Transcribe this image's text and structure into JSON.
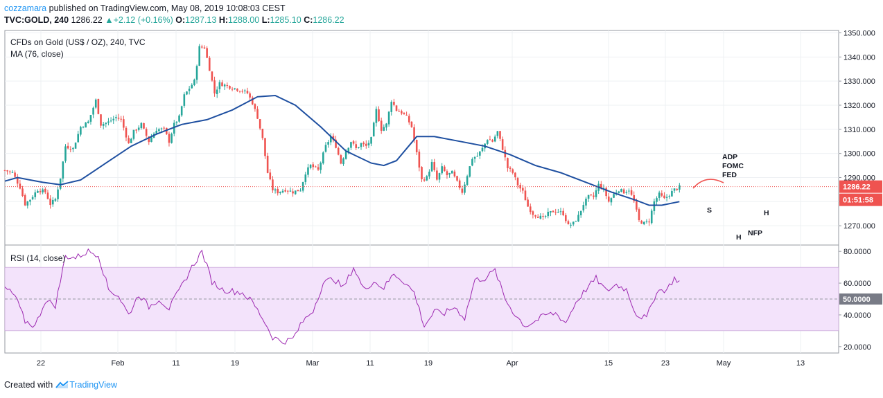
{
  "header": {
    "author": "cozzamara",
    "published": "published on TradingView.com, May 08, 2019 10:08:03 CEST",
    "symbol": "TVC:GOLD, 240",
    "last": "1286.22",
    "change": "+2.12 (+0.16%)",
    "o_label": "O:",
    "o_value": "1287.13",
    "h_label": "H:",
    "h_value": "1288.00",
    "l_label": "L:",
    "l_value": "1285.10",
    "c_label": "C:",
    "c_value": "1286.22"
  },
  "footer": {
    "created_with": "Created with",
    "brand": "TradingView"
  },
  "colors": {
    "up": "#26a69a",
    "down": "#ef5350",
    "ma": "#1e4fa0",
    "rsi": "#9c27b0",
    "rsi_band": "#f3e3fb",
    "last_label": "#ef5350",
    "rsi_label": "#787b86"
  },
  "chart_data": [
    {
      "type": "candlestick",
      "legend": [
        "CFDs on Gold (US$ / OZ), 240, TVC",
        "MA (76, close)"
      ],
      "y_ticks": [
        1270.0,
        1280.0,
        1290.0,
        1300.0,
        1310.0,
        1320.0,
        1330.0,
        1340.0,
        1350.0
      ],
      "y_tick_labels": [
        "1270.000",
        "1280.000",
        "1290.000",
        "1300.000",
        "1310.000",
        "1320.000",
        "1330.000",
        "1340.000",
        "1350.000"
      ],
      "ylim": [
        1262,
        1351
      ],
      "last_price_label": "1286.22",
      "countdown_label": "01:51:58",
      "annotations": [
        "ADP",
        "FOMC",
        "FED",
        "S",
        "H",
        "H",
        "NFP"
      ],
      "x_tick_labels": [
        "22",
        "Feb",
        "11",
        "19",
        "Mar",
        "11",
        "19",
        "Apr",
        "15",
        "23",
        "May",
        "13"
      ],
      "close_path": [
        {
          "x": 0,
          "y": 1293
        },
        {
          "x": 3,
          "y": 1292
        },
        {
          "x": 6,
          "y": 1286
        },
        {
          "x": 8,
          "y": 1279
        },
        {
          "x": 10,
          "y": 1281
        },
        {
          "x": 13,
          "y": 1285
        },
        {
          "x": 16,
          "y": 1284
        },
        {
          "x": 18,
          "y": 1279
        },
        {
          "x": 20,
          "y": 1281
        },
        {
          "x": 22,
          "y": 1290
        },
        {
          "x": 24,
          "y": 1303
        },
        {
          "x": 27,
          "y": 1302
        },
        {
          "x": 30,
          "y": 1311
        },
        {
          "x": 33,
          "y": 1313
        },
        {
          "x": 36,
          "y": 1322
        },
        {
          "x": 38,
          "y": 1312
        },
        {
          "x": 41,
          "y": 1313
        },
        {
          "x": 44,
          "y": 1315
        },
        {
          "x": 46,
          "y": 1314
        },
        {
          "x": 49,
          "y": 1304
        },
        {
          "x": 51,
          "y": 1309
        },
        {
          "x": 54,
          "y": 1312
        },
        {
          "x": 57,
          "y": 1305
        },
        {
          "x": 60,
          "y": 1310
        },
        {
          "x": 63,
          "y": 1310
        },
        {
          "x": 65,
          "y": 1305
        },
        {
          "x": 67,
          "y": 1312
        },
        {
          "x": 69,
          "y": 1315
        },
        {
          "x": 71,
          "y": 1324
        },
        {
          "x": 73,
          "y": 1327
        },
        {
          "x": 75,
          "y": 1330
        },
        {
          "x": 77,
          "y": 1344
        },
        {
          "x": 79,
          "y": 1344
        },
        {
          "x": 81,
          "y": 1335
        },
        {
          "x": 83,
          "y": 1325
        },
        {
          "x": 85,
          "y": 1329
        },
        {
          "x": 88,
          "y": 1328
        },
        {
          "x": 91,
          "y": 1327
        },
        {
          "x": 94,
          "y": 1326
        },
        {
          "x": 96,
          "y": 1325
        },
        {
          "x": 98,
          "y": 1321
        },
        {
          "x": 100,
          "y": 1315
        },
        {
          "x": 102,
          "y": 1306
        },
        {
          "x": 104,
          "y": 1292
        },
        {
          "x": 106,
          "y": 1285
        },
        {
          "x": 108,
          "y": 1284
        },
        {
          "x": 111,
          "y": 1285
        },
        {
          "x": 114,
          "y": 1284
        },
        {
          "x": 117,
          "y": 1285
        },
        {
          "x": 119,
          "y": 1292
        },
        {
          "x": 121,
          "y": 1295
        },
        {
          "x": 124,
          "y": 1293
        },
        {
          "x": 127,
          "y": 1303
        },
        {
          "x": 129,
          "y": 1307
        },
        {
          "x": 131,
          "y": 1303
        },
        {
          "x": 133,
          "y": 1296
        },
        {
          "x": 135,
          "y": 1301
        },
        {
          "x": 137,
          "y": 1305
        },
        {
          "x": 139,
          "y": 1302
        },
        {
          "x": 141,
          "y": 1304
        },
        {
          "x": 143,
          "y": 1303
        },
        {
          "x": 145,
          "y": 1306
        },
        {
          "x": 147,
          "y": 1318
        },
        {
          "x": 149,
          "y": 1310
        },
        {
          "x": 151,
          "y": 1312
        },
        {
          "x": 153,
          "y": 1322
        },
        {
          "x": 155,
          "y": 1318
        },
        {
          "x": 157,
          "y": 1317
        },
        {
          "x": 159,
          "y": 1315
        },
        {
          "x": 161,
          "y": 1311
        },
        {
          "x": 163,
          "y": 1300
        },
        {
          "x": 165,
          "y": 1289
        },
        {
          "x": 167,
          "y": 1290
        },
        {
          "x": 169,
          "y": 1296
        },
        {
          "x": 171,
          "y": 1289
        },
        {
          "x": 173,
          "y": 1294
        },
        {
          "x": 175,
          "y": 1291
        },
        {
          "x": 177,
          "y": 1292
        },
        {
          "x": 179,
          "y": 1288
        },
        {
          "x": 181,
          "y": 1284
        },
        {
          "x": 183,
          "y": 1291
        },
        {
          "x": 185,
          "y": 1298
        },
        {
          "x": 187,
          "y": 1299
        },
        {
          "x": 189,
          "y": 1302
        },
        {
          "x": 191,
          "y": 1306
        },
        {
          "x": 193,
          "y": 1305
        },
        {
          "x": 195,
          "y": 1309
        },
        {
          "x": 197,
          "y": 1302
        },
        {
          "x": 199,
          "y": 1294
        },
        {
          "x": 201,
          "y": 1292
        },
        {
          "x": 203,
          "y": 1287
        },
        {
          "x": 205,
          "y": 1284
        },
        {
          "x": 207,
          "y": 1278
        },
        {
          "x": 209,
          "y": 1275
        },
        {
          "x": 211,
          "y": 1274
        },
        {
          "x": 213,
          "y": 1273
        },
        {
          "x": 215,
          "y": 1275
        },
        {
          "x": 217,
          "y": 1276
        },
        {
          "x": 219,
          "y": 1276
        },
        {
          "x": 221,
          "y": 1275
        },
        {
          "x": 223,
          "y": 1270
        },
        {
          "x": 225,
          "y": 1271
        },
        {
          "x": 227,
          "y": 1274
        },
        {
          "x": 229,
          "y": 1279
        },
        {
          "x": 231,
          "y": 1282
        },
        {
          "x": 233,
          "y": 1282
        },
        {
          "x": 235,
          "y": 1287
        },
        {
          "x": 237,
          "y": 1285
        },
        {
          "x": 239,
          "y": 1280
        },
        {
          "x": 241,
          "y": 1283
        },
        {
          "x": 243,
          "y": 1285
        },
        {
          "x": 245,
          "y": 1284
        },
        {
          "x": 247,
          "y": 1285
        },
        {
          "x": 249,
          "y": 1280
        },
        {
          "x": 251,
          "y": 1272
        },
        {
          "x": 253,
          "y": 1271
        },
        {
          "x": 255,
          "y": 1272
        },
        {
          "x": 257,
          "y": 1280
        },
        {
          "x": 259,
          "y": 1283
        },
        {
          "x": 261,
          "y": 1281
        },
        {
          "x": 263,
          "y": 1283
        },
        {
          "x": 265,
          "y": 1285
        },
        {
          "x": 267,
          "y": 1286
        }
      ],
      "ma_path": [
        {
          "x": 0,
          "y": 1288.5
        },
        {
          "x": 5,
          "y": 1290
        },
        {
          "x": 10,
          "y": 1289
        },
        {
          "x": 15,
          "y": 1288
        },
        {
          "x": 22,
          "y": 1287
        },
        {
          "x": 30,
          "y": 1289
        },
        {
          "x": 40,
          "y": 1296
        },
        {
          "x": 50,
          "y": 1303
        },
        {
          "x": 60,
          "y": 1308
        },
        {
          "x": 70,
          "y": 1312
        },
        {
          "x": 80,
          "y": 1314
        },
        {
          "x": 90,
          "y": 1318
        },
        {
          "x": 100,
          "y": 1323.5
        },
        {
          "x": 107,
          "y": 1324
        },
        {
          "x": 115,
          "y": 1320
        },
        {
          "x": 125,
          "y": 1311
        },
        {
          "x": 135,
          "y": 1301
        },
        {
          "x": 145,
          "y": 1296
        },
        {
          "x": 150,
          "y": 1295
        },
        {
          "x": 155,
          "y": 1297
        },
        {
          "x": 163,
          "y": 1307
        },
        {
          "x": 170,
          "y": 1307
        },
        {
          "x": 180,
          "y": 1305
        },
        {
          "x": 190,
          "y": 1303
        },
        {
          "x": 200,
          "y": 1299.5
        },
        {
          "x": 210,
          "y": 1295
        },
        {
          "x": 220,
          "y": 1292
        },
        {
          "x": 230,
          "y": 1288
        },
        {
          "x": 240,
          "y": 1284
        },
        {
          "x": 250,
          "y": 1280.5
        },
        {
          "x": 255,
          "y": 1278.5
        },
        {
          "x": 260,
          "y": 1278.5
        },
        {
          "x": 267,
          "y": 1280
        }
      ]
    },
    {
      "type": "line",
      "legend": [
        "RSI (14, close)"
      ],
      "y_ticks": [
        20,
        40,
        60,
        80
      ],
      "y_tick_labels": [
        "20.0000",
        "40.0000",
        "60.0000",
        "80.0000"
      ],
      "ylim": [
        16,
        84
      ],
      "band": [
        30,
        70
      ],
      "mid_line": 50,
      "mid_label": "50.0000",
      "values": [
        {
          "x": 0,
          "y": 57
        },
        {
          "x": 4,
          "y": 52
        },
        {
          "x": 8,
          "y": 36
        },
        {
          "x": 12,
          "y": 33
        },
        {
          "x": 16,
          "y": 49
        },
        {
          "x": 20,
          "y": 46
        },
        {
          "x": 24,
          "y": 77
        },
        {
          "x": 28,
          "y": 76
        },
        {
          "x": 33,
          "y": 80
        },
        {
          "x": 37,
          "y": 78
        },
        {
          "x": 41,
          "y": 56
        },
        {
          "x": 45,
          "y": 52
        },
        {
          "x": 49,
          "y": 40
        },
        {
          "x": 53,
          "y": 53
        },
        {
          "x": 57,
          "y": 45
        },
        {
          "x": 61,
          "y": 50
        },
        {
          "x": 65,
          "y": 44
        },
        {
          "x": 70,
          "y": 58
        },
        {
          "x": 74,
          "y": 70
        },
        {
          "x": 78,
          "y": 80
        },
        {
          "x": 82,
          "y": 61
        },
        {
          "x": 86,
          "y": 56
        },
        {
          "x": 90,
          "y": 55
        },
        {
          "x": 94,
          "y": 54
        },
        {
          "x": 98,
          "y": 48
        },
        {
          "x": 102,
          "y": 38
        },
        {
          "x": 106,
          "y": 26
        },
        {
          "x": 110,
          "y": 23
        },
        {
          "x": 114,
          "y": 25
        },
        {
          "x": 118,
          "y": 36
        },
        {
          "x": 122,
          "y": 43
        },
        {
          "x": 126,
          "y": 60
        },
        {
          "x": 130,
          "y": 63
        },
        {
          "x": 134,
          "y": 57
        },
        {
          "x": 138,
          "y": 70
        },
        {
          "x": 142,
          "y": 56
        },
        {
          "x": 146,
          "y": 61
        },
        {
          "x": 150,
          "y": 57
        },
        {
          "x": 154,
          "y": 66
        },
        {
          "x": 158,
          "y": 61
        },
        {
          "x": 162,
          "y": 54
        },
        {
          "x": 166,
          "y": 33
        },
        {
          "x": 170,
          "y": 42
        },
        {
          "x": 174,
          "y": 41
        },
        {
          "x": 178,
          "y": 45
        },
        {
          "x": 182,
          "y": 38
        },
        {
          "x": 186,
          "y": 62
        },
        {
          "x": 190,
          "y": 63
        },
        {
          "x": 194,
          "y": 68
        },
        {
          "x": 198,
          "y": 50
        },
        {
          "x": 202,
          "y": 40
        },
        {
          "x": 206,
          "y": 33
        },
        {
          "x": 210,
          "y": 36
        },
        {
          "x": 214,
          "y": 40
        },
        {
          "x": 218,
          "y": 41
        },
        {
          "x": 222,
          "y": 35
        },
        {
          "x": 226,
          "y": 48
        },
        {
          "x": 230,
          "y": 56
        },
        {
          "x": 234,
          "y": 63
        },
        {
          "x": 238,
          "y": 55
        },
        {
          "x": 242,
          "y": 59
        },
        {
          "x": 246,
          "y": 56
        },
        {
          "x": 250,
          "y": 40
        },
        {
          "x": 254,
          "y": 38
        },
        {
          "x": 258,
          "y": 55
        },
        {
          "x": 262,
          "y": 56
        },
        {
          "x": 265,
          "y": 63
        },
        {
          "x": 267,
          "y": 61
        }
      ]
    }
  ]
}
